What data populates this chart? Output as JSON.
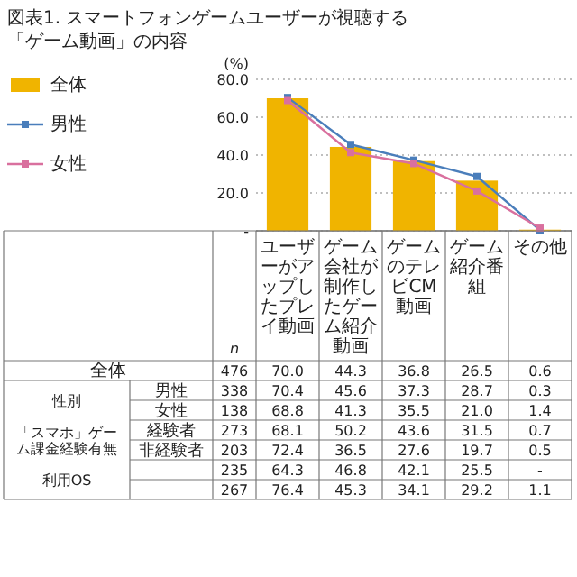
{
  "chart_data": {
    "type": "bar",
    "title": "図表1. スマートフォンゲームユーザーが視聴する「ゲーム動画」の内容",
    "ylabel": "(%)",
    "categories": [
      "ユーザーがアップしたプレイ動画",
      "ゲーム会社が制作したゲーム紹介動画",
      "ゲームのテレビCM動画",
      "ゲーム紹介番組",
      "その他"
    ],
    "ylim": [
      0,
      80
    ],
    "yticks": [
      {
        "value": 0,
        "label": "-"
      },
      {
        "value": 20,
        "label": "20.0"
      },
      {
        "value": 40,
        "label": "40.0"
      },
      {
        "value": 60,
        "label": "60.0"
      },
      {
        "value": 80,
        "label": "80.0"
      }
    ],
    "grid": "y",
    "legend": "left",
    "marker": "square",
    "line_style": "solid",
    "series": [
      {
        "name": "全体",
        "color": "#f0b400",
        "values": [
          70.0,
          44.3,
          36.8,
          26.5,
          0.6
        ],
        "value_labels": [
          "70.0",
          "44.3",
          "36.8",
          "26.5",
          "0.6"
        ]
      },
      {
        "name": "男性",
        "type": "line",
        "color": "#4a7ebb",
        "values": [
          70.4,
          45.6,
          37.3,
          28.7,
          0.3
        ],
        "value_labels": [
          "70.4",
          "45.6",
          "37.3",
          "28.7",
          "0.3"
        ]
      },
      {
        "name": "女性",
        "type": "line",
        "color": "#d9709e",
        "values": [
          68.8,
          41.3,
          35.5,
          21.0,
          1.4
        ],
        "value_labels": [
          "68.8",
          "41.3",
          "35.5",
          "21.0",
          "1.4"
        ]
      }
    ],
    "annotations": [
      "性別",
      "「スマホ」ゲーム課金経験有無",
      "利用OS",
      "n",
      "476",
      "338",
      "138",
      "273",
      "203",
      "235",
      "267",
      "経験者",
      "非経験者",
      "68.1",
      "50.2",
      "43.6",
      "31.5",
      "0.7",
      "72.4",
      "36.5",
      "27.6",
      "19.7",
      "0.5",
      "64.3",
      "46.8",
      "42.1",
      "25.5",
      "-",
      "76.4",
      "45.3",
      "34.1",
      "29.2",
      "1.1"
    ]
  }
}
